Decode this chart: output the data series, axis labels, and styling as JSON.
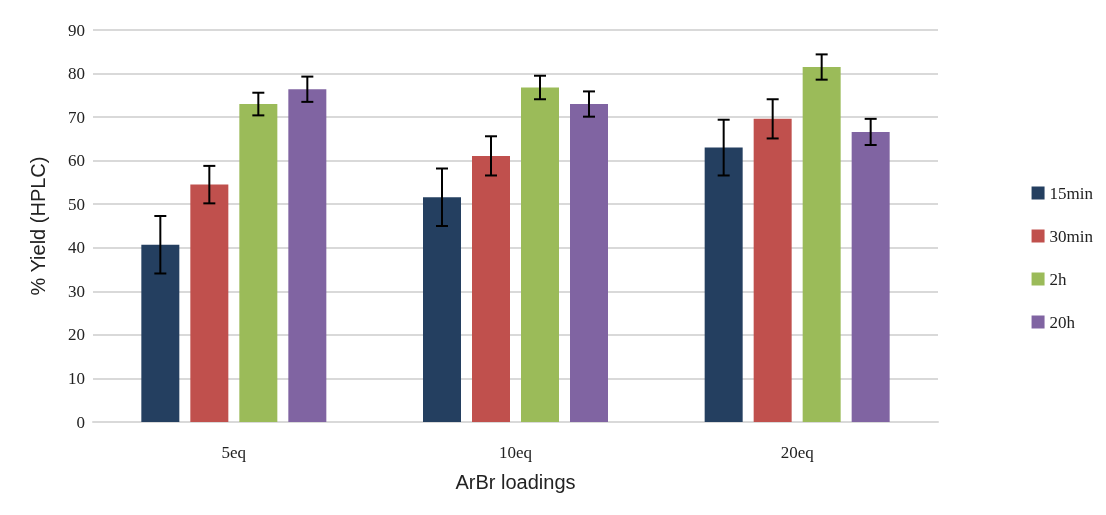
{
  "chart_data": {
    "type": "bar",
    "xlabel": "ArBr loadings",
    "ylabel": "% Yield (HPLC)",
    "categories": [
      "5eq",
      "10eq",
      "20eq"
    ],
    "series": [
      {
        "name": "15min",
        "color": "#243f60",
        "values": [
          40.7,
          51.6,
          63.0
        ],
        "errors": [
          6.6,
          6.6,
          6.4
        ]
      },
      {
        "name": "30min",
        "color": "#c0504d",
        "values": [
          54.5,
          61.1,
          69.6
        ],
        "errors": [
          4.3,
          4.5,
          4.5
        ]
      },
      {
        "name": "2h",
        "color": "#9bbb59",
        "values": [
          73.0,
          76.8,
          81.5
        ],
        "errors": [
          2.6,
          2.7,
          2.9
        ]
      },
      {
        "name": "20h",
        "color": "#8064a2",
        "values": [
          76.4,
          73.0,
          66.6
        ],
        "errors": [
          2.9,
          2.9,
          3.0
        ]
      }
    ],
    "ylim": [
      0,
      90
    ],
    "yticks": [
      0,
      10,
      20,
      30,
      40,
      50,
      60,
      70,
      80,
      90
    ],
    "grid": "y",
    "legend": "right"
  }
}
